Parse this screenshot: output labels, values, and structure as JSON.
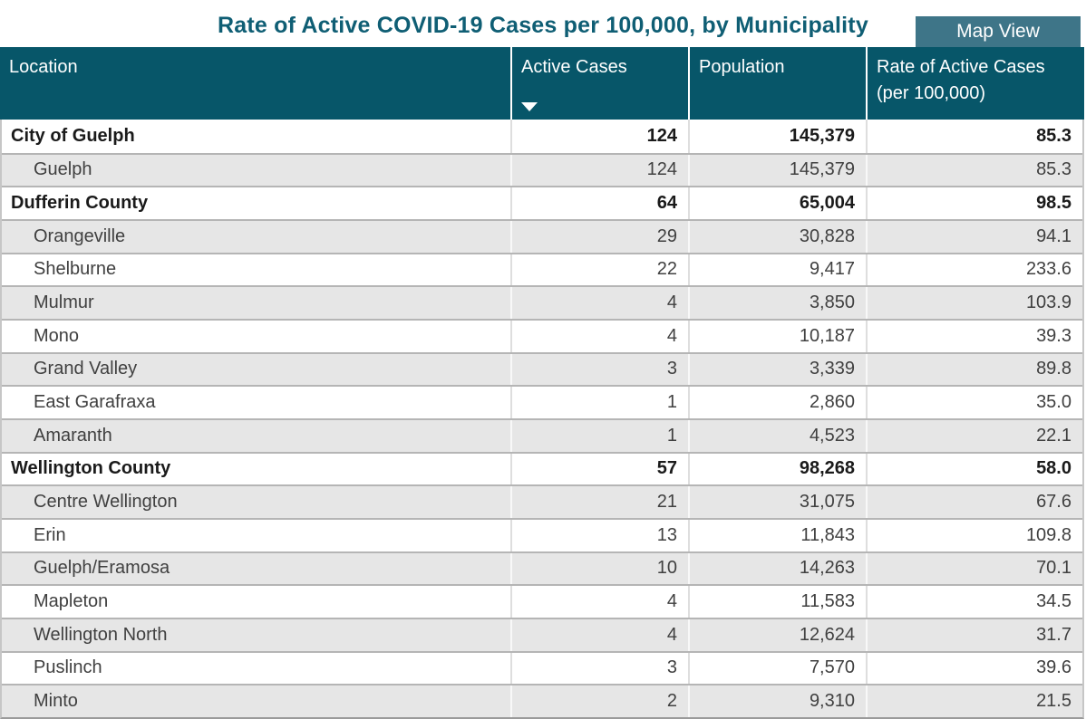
{
  "page": {
    "title": "Rate of Active COVID-19 Cases per 100,000, by Municipality",
    "map_view_label": "Map View"
  },
  "table": {
    "columns": {
      "location": "Location",
      "active_cases": "Active Cases",
      "population": "Population",
      "rate": "Rate of Active Cases (per 100,000)"
    },
    "sort": {
      "column": "Active Cases",
      "direction": "descending",
      "icon": "▼"
    },
    "rows": [
      {
        "location": "City of Guelph",
        "active_cases": "124",
        "population": "145,379",
        "rate": "85.3",
        "group": true
      },
      {
        "location": "Guelph",
        "active_cases": "124",
        "population": "145,379",
        "rate": "85.3",
        "group": false
      },
      {
        "location": "Dufferin County",
        "active_cases": "64",
        "population": "65,004",
        "rate": "98.5",
        "group": true
      },
      {
        "location": "Orangeville",
        "active_cases": "29",
        "population": "30,828",
        "rate": "94.1",
        "group": false
      },
      {
        "location": "Shelburne",
        "active_cases": "22",
        "population": "9,417",
        "rate": "233.6",
        "group": false
      },
      {
        "location": "Mulmur",
        "active_cases": "4",
        "population": "3,850",
        "rate": "103.9",
        "group": false
      },
      {
        "location": "Mono",
        "active_cases": "4",
        "population": "10,187",
        "rate": "39.3",
        "group": false
      },
      {
        "location": "Grand Valley",
        "active_cases": "3",
        "population": "3,339",
        "rate": "89.8",
        "group": false
      },
      {
        "location": "East Garafraxa",
        "active_cases": "1",
        "population": "2,860",
        "rate": "35.0",
        "group": false
      },
      {
        "location": "Amaranth",
        "active_cases": "1",
        "population": "4,523",
        "rate": "22.1",
        "group": false
      },
      {
        "location": "Wellington County",
        "active_cases": "57",
        "population": "98,268",
        "rate": "58.0",
        "group": true
      },
      {
        "location": "Centre Wellington",
        "active_cases": "21",
        "population": "31,075",
        "rate": "67.6",
        "group": false
      },
      {
        "location": "Erin",
        "active_cases": "13",
        "population": "11,843",
        "rate": "109.8",
        "group": false
      },
      {
        "location": "Guelph/Eramosa",
        "active_cases": "10",
        "population": "14,263",
        "rate": "70.1",
        "group": false
      },
      {
        "location": "Mapleton",
        "active_cases": "4",
        "population": "11,583",
        "rate": "34.5",
        "group": false
      },
      {
        "location": "Wellington North",
        "active_cases": "4",
        "population": "12,624",
        "rate": "31.7",
        "group": false
      },
      {
        "location": "Puslinch",
        "active_cases": "3",
        "population": "7,570",
        "rate": "39.6",
        "group": false
      },
      {
        "location": "Minto",
        "active_cases": "2",
        "population": "9,310",
        "rate": "21.5",
        "group": false
      }
    ]
  },
  "colors": {
    "header_teal": "#075669",
    "title_teal": "#0f5e74",
    "button_teal": "#3e7588",
    "row_gray": "#e6e6e6",
    "row_separator": "#b5b5b5"
  }
}
